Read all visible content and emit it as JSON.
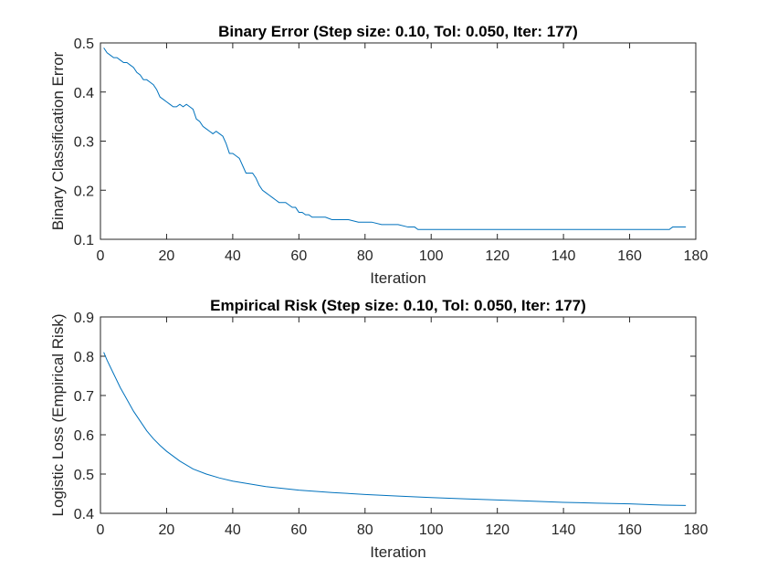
{
  "chart_data": [
    {
      "type": "line",
      "title": "Binary Error (Step size: 0.10, Tol: 0.050, Iter: 177)",
      "xlabel": "Iteration",
      "ylabel": "Binary Classification Error",
      "xlim": [
        0,
        180
      ],
      "ylim": [
        0.1,
        0.5
      ],
      "xticks": [
        "0",
        "20",
        "40",
        "60",
        "80",
        "100",
        "120",
        "140",
        "160",
        "180"
      ],
      "yticks": [
        "0.1",
        "0.2",
        "0.3",
        "0.4",
        "0.5"
      ],
      "xtick_values": [
        0,
        20,
        40,
        60,
        80,
        100,
        120,
        140,
        160,
        180
      ],
      "ytick_values": [
        0.1,
        0.2,
        0.3,
        0.4,
        0.5
      ],
      "grid": false,
      "line_color": "#0072BD",
      "series": [
        {
          "x": [
            1,
            2,
            3,
            4,
            5,
            6,
            7,
            8,
            9,
            10,
            11,
            12,
            13,
            14,
            15,
            16,
            17,
            18,
            19,
            20,
            21,
            22,
            23,
            24,
            25,
            26,
            27,
            28,
            29,
            30,
            31,
            32,
            33,
            34,
            35,
            36,
            37,
            38,
            39,
            40,
            41,
            42,
            43,
            44,
            45,
            46,
            47,
            48,
            49,
            50,
            51,
            52,
            53,
            54,
            55,
            56,
            57,
            58,
            59,
            60,
            61,
            62,
            63,
            64,
            65,
            68,
            70,
            72,
            75,
            78,
            80,
            82,
            85,
            88,
            90,
            93,
            95,
            96,
            100,
            120,
            140,
            160,
            172,
            173,
            177
          ],
          "y": [
            0.49,
            0.48,
            0.475,
            0.47,
            0.47,
            0.465,
            0.46,
            0.46,
            0.455,
            0.45,
            0.44,
            0.435,
            0.425,
            0.425,
            0.42,
            0.415,
            0.405,
            0.39,
            0.385,
            0.38,
            0.375,
            0.37,
            0.37,
            0.375,
            0.37,
            0.375,
            0.37,
            0.365,
            0.345,
            0.34,
            0.33,
            0.325,
            0.32,
            0.315,
            0.32,
            0.315,
            0.31,
            0.295,
            0.275,
            0.275,
            0.27,
            0.265,
            0.25,
            0.235,
            0.235,
            0.235,
            0.225,
            0.21,
            0.2,
            0.195,
            0.19,
            0.185,
            0.18,
            0.175,
            0.175,
            0.175,
            0.17,
            0.165,
            0.165,
            0.155,
            0.155,
            0.15,
            0.15,
            0.145,
            0.145,
            0.145,
            0.14,
            0.14,
            0.14,
            0.135,
            0.135,
            0.135,
            0.13,
            0.13,
            0.13,
            0.125,
            0.125,
            0.12,
            0.12,
            0.12,
            0.12,
            0.12,
            0.12,
            0.125,
            0.125
          ]
        }
      ]
    },
    {
      "type": "line",
      "title": "Empirical Risk (Step size: 0.10, Tol: 0.050, Iter: 177)",
      "xlabel": "Iteration",
      "ylabel": "Logistic Loss (Empirical Risk)",
      "xlim": [
        0,
        180
      ],
      "ylim": [
        0.4,
        0.9
      ],
      "xticks": [
        "0",
        "20",
        "40",
        "60",
        "80",
        "100",
        "120",
        "140",
        "160",
        "180"
      ],
      "yticks": [
        "0.4",
        "0.5",
        "0.6",
        "0.7",
        "0.8",
        "0.9"
      ],
      "xtick_values": [
        0,
        20,
        40,
        60,
        80,
        100,
        120,
        140,
        160,
        180
      ],
      "ytick_values": [
        0.4,
        0.5,
        0.6,
        0.7,
        0.8,
        0.9
      ],
      "grid": false,
      "line_color": "#0072BD",
      "series": [
        {
          "x": [
            1,
            2,
            4,
            6,
            8,
            10,
            12,
            14,
            16,
            18,
            20,
            24,
            28,
            32,
            36,
            40,
            50,
            60,
            70,
            80,
            90,
            100,
            110,
            120,
            130,
            140,
            150,
            160,
            170,
            177
          ],
          "y": [
            0.81,
            0.79,
            0.755,
            0.72,
            0.69,
            0.66,
            0.635,
            0.61,
            0.59,
            0.573,
            0.558,
            0.533,
            0.513,
            0.5,
            0.49,
            0.482,
            0.468,
            0.459,
            0.453,
            0.448,
            0.444,
            0.44,
            0.437,
            0.434,
            0.431,
            0.428,
            0.426,
            0.424,
            0.421,
            0.42
          ]
        }
      ]
    }
  ]
}
